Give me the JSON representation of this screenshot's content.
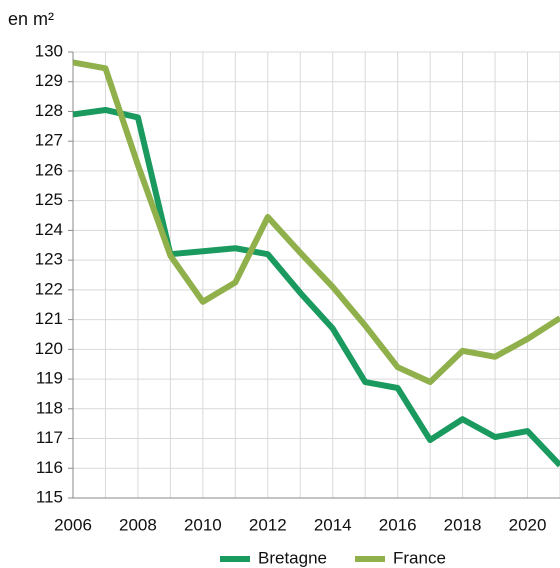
{
  "chart_data": {
    "type": "line",
    "y_label": "en m²",
    "x": [
      2006,
      2007,
      2008,
      2009,
      2010,
      2011,
      2012,
      2013,
      2014,
      2015,
      2016,
      2017,
      2018,
      2019,
      2020,
      2021
    ],
    "series": [
      {
        "name": "Bretagne",
        "color": "#1a9a5e",
        "values": [
          127.9,
          128.05,
          127.8,
          123.2,
          123.3,
          123.4,
          123.2,
          121.9,
          120.7,
          118.9,
          118.7,
          116.95,
          117.65,
          117.05,
          117.25,
          116.1
        ]
      },
      {
        "name": "France",
        "color": "#8fb04a",
        "values": [
          129.65,
          129.45,
          126.2,
          123.15,
          121.6,
          122.25,
          124.45,
          123.25,
          122.1,
          120.8,
          119.4,
          118.9,
          119.95,
          119.75,
          120.35,
          121.05
        ]
      }
    ],
    "xlim": [
      2006,
      2021
    ],
    "xticks": [
      2006,
      2008,
      2010,
      2012,
      2014,
      2016,
      2018,
      2020
    ],
    "xminor": [
      2007,
      2009,
      2011,
      2013,
      2015,
      2017,
      2019,
      2021
    ],
    "ylim": [
      115,
      130
    ],
    "yticks": [
      115,
      116,
      117,
      118,
      119,
      120,
      121,
      122,
      123,
      124,
      125,
      126,
      127,
      128,
      129,
      130
    ],
    "grid": true,
    "legend": "bottom"
  }
}
